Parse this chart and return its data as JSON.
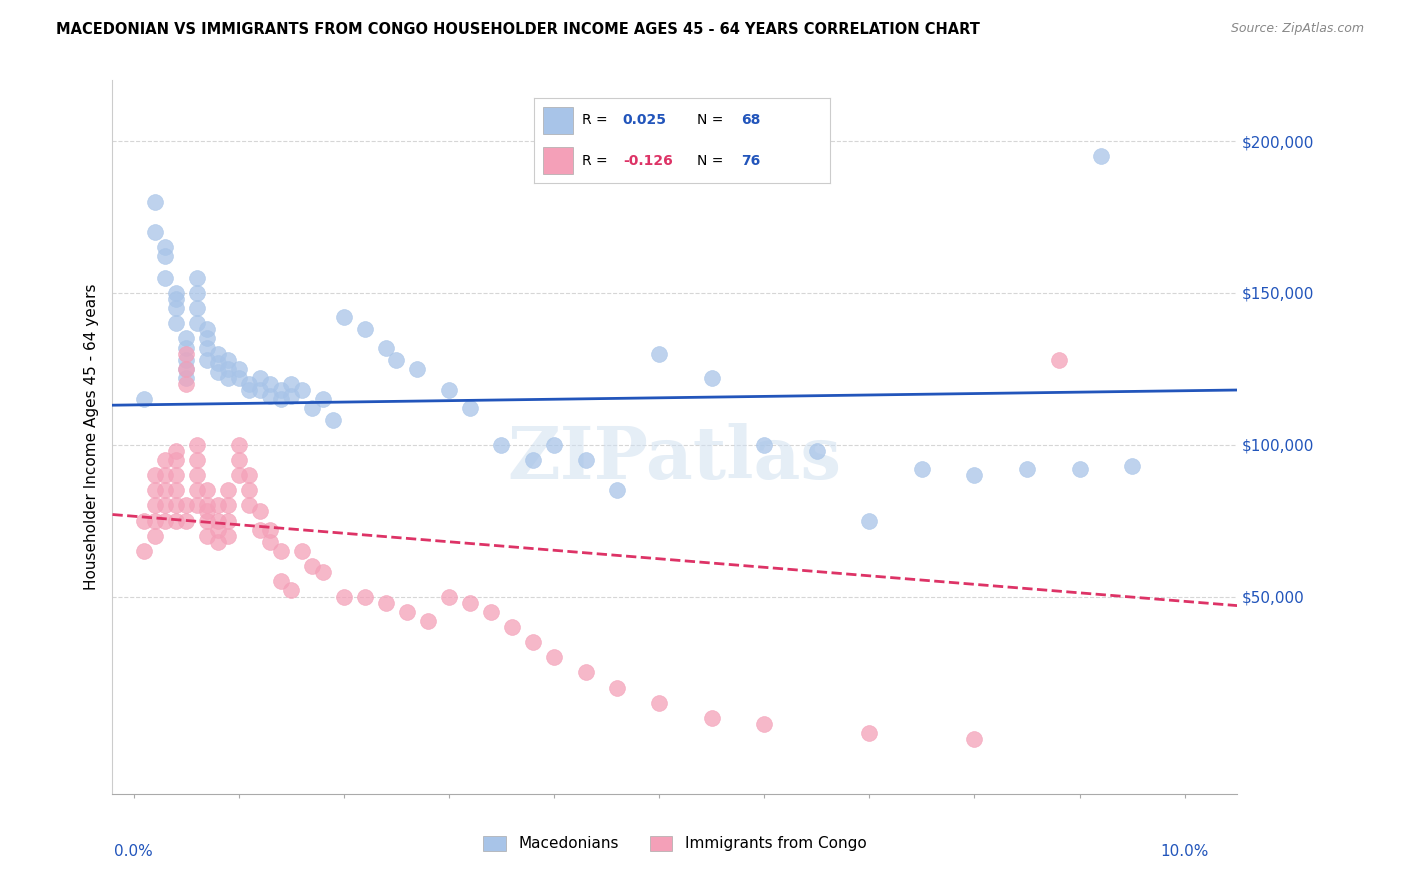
{
  "title": "MACEDONIAN VS IMMIGRANTS FROM CONGO HOUSEHOLDER INCOME AGES 45 - 64 YEARS CORRELATION CHART",
  "source": "Source: ZipAtlas.com",
  "ylabel": "Householder Income Ages 45 - 64 years",
  "ytick_labels": [
    "$50,000",
    "$100,000",
    "$150,000",
    "$200,000"
  ],
  "ytick_values": [
    50000,
    100000,
    150000,
    200000
  ],
  "ylim": [
    -15000,
    220000
  ],
  "xlim": [
    -0.002,
    0.105
  ],
  "macedonian_color": "#a8c4e8",
  "congo_color": "#f4a0b8",
  "macedonian_line_color": "#2255bb",
  "congo_line_color": "#dd3366",
  "watermark": "ZIPatlas",
  "mac_R": "0.025",
  "mac_N": "68",
  "con_R": "-0.126",
  "con_N": "76",
  "macedonians_scatter_x": [
    0.001,
    0.002,
    0.002,
    0.003,
    0.003,
    0.003,
    0.004,
    0.004,
    0.004,
    0.004,
    0.005,
    0.005,
    0.005,
    0.005,
    0.005,
    0.006,
    0.006,
    0.006,
    0.006,
    0.007,
    0.007,
    0.007,
    0.007,
    0.008,
    0.008,
    0.008,
    0.009,
    0.009,
    0.009,
    0.01,
    0.01,
    0.011,
    0.011,
    0.012,
    0.012,
    0.013,
    0.013,
    0.014,
    0.014,
    0.015,
    0.015,
    0.016,
    0.017,
    0.018,
    0.019,
    0.02,
    0.022,
    0.024,
    0.025,
    0.027,
    0.03,
    0.032,
    0.035,
    0.038,
    0.04,
    0.043,
    0.046,
    0.05,
    0.055,
    0.06,
    0.065,
    0.07,
    0.075,
    0.08,
    0.085,
    0.09,
    0.095,
    0.092
  ],
  "macedonians_scatter_y": [
    115000,
    180000,
    170000,
    165000,
    162000,
    155000,
    150000,
    148000,
    145000,
    140000,
    135000,
    132000,
    128000,
    125000,
    122000,
    155000,
    150000,
    145000,
    140000,
    138000,
    135000,
    132000,
    128000,
    130000,
    127000,
    124000,
    128000,
    125000,
    122000,
    125000,
    122000,
    120000,
    118000,
    122000,
    118000,
    120000,
    116000,
    118000,
    115000,
    120000,
    116000,
    118000,
    112000,
    115000,
    108000,
    142000,
    138000,
    132000,
    128000,
    125000,
    118000,
    112000,
    100000,
    95000,
    100000,
    95000,
    85000,
    130000,
    122000,
    100000,
    98000,
    75000,
    92000,
    90000,
    92000,
    92000,
    93000,
    195000
  ],
  "congo_scatter_x": [
    0.001,
    0.001,
    0.002,
    0.002,
    0.002,
    0.002,
    0.002,
    0.003,
    0.003,
    0.003,
    0.003,
    0.003,
    0.004,
    0.004,
    0.004,
    0.004,
    0.004,
    0.004,
    0.005,
    0.005,
    0.005,
    0.005,
    0.005,
    0.006,
    0.006,
    0.006,
    0.006,
    0.006,
    0.007,
    0.007,
    0.007,
    0.007,
    0.007,
    0.008,
    0.008,
    0.008,
    0.008,
    0.009,
    0.009,
    0.009,
    0.009,
    0.01,
    0.01,
    0.01,
    0.011,
    0.011,
    0.011,
    0.012,
    0.012,
    0.013,
    0.013,
    0.014,
    0.014,
    0.015,
    0.016,
    0.017,
    0.018,
    0.02,
    0.022,
    0.024,
    0.026,
    0.028,
    0.03,
    0.032,
    0.034,
    0.036,
    0.038,
    0.04,
    0.043,
    0.046,
    0.05,
    0.055,
    0.06,
    0.07,
    0.08,
    0.088
  ],
  "congo_scatter_y": [
    75000,
    65000,
    90000,
    85000,
    80000,
    75000,
    70000,
    95000,
    90000,
    85000,
    80000,
    75000,
    98000,
    95000,
    90000,
    85000,
    80000,
    75000,
    130000,
    125000,
    120000,
    80000,
    75000,
    100000,
    95000,
    90000,
    85000,
    80000,
    85000,
    80000,
    78000,
    75000,
    70000,
    80000,
    75000,
    72000,
    68000,
    85000,
    80000,
    75000,
    70000,
    100000,
    95000,
    90000,
    90000,
    85000,
    80000,
    78000,
    72000,
    72000,
    68000,
    65000,
    55000,
    52000,
    65000,
    60000,
    58000,
    50000,
    50000,
    48000,
    45000,
    42000,
    50000,
    48000,
    45000,
    40000,
    35000,
    30000,
    25000,
    20000,
    15000,
    10000,
    8000,
    5000,
    3000,
    128000
  ]
}
